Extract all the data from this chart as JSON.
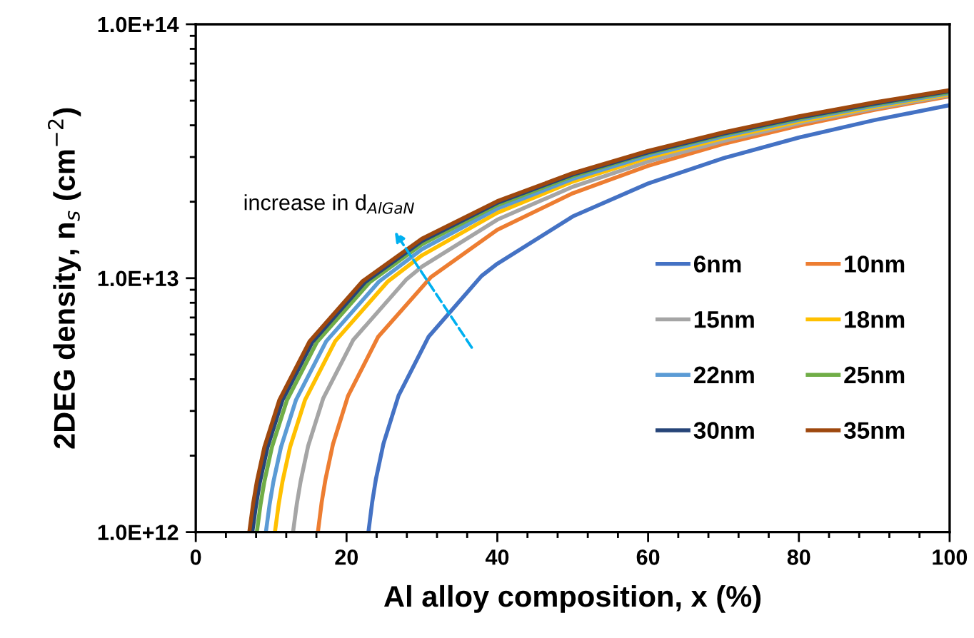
{
  "chart_data": {
    "type": "line",
    "xlabel": "Al alloy composition, x (%)",
    "ylabel": "2DEG density, n$_{s}$ (cm$^{−2}$)",
    "log": "y",
    "xlim": [
      0,
      100
    ],
    "xticks": [
      0,
      20,
      40,
      60,
      80,
      100
    ],
    "ylim": [
      1000000000000.0,
      100000000000000.0
    ],
    "yticks": [
      {
        "value": 1000000000000.0,
        "label": "1.0E+12"
      },
      {
        "value": 10000000000000.0,
        "label": "1.0E+13"
      },
      {
        "value": 100000000000000.0,
        "label": "1.0E+14"
      }
    ],
    "grid": false,
    "legend": "right",
    "marker": "none",
    "line_style": "solid",
    "annotations": [
      "increase in d$_{AlGaN}$"
    ],
    "series": [
      {
        "name": "6nm",
        "color": "#4472c4",
        "x": [
          22.9,
          23.4,
          23.9,
          24.9,
          26.9,
          30.9,
          37.9,
          40,
          50,
          60,
          70,
          80,
          90,
          100
        ],
        "values": [
          1000000000000.0,
          1310000000000.0,
          1620000000000.0,
          2230000000000.0,
          3450000000000.0,
          5890000000000.0,
          10200000000000.0,
          11400000000000.0,
          17500000000000.0,
          23600000000000.0,
          29700000000000.0,
          35800000000000.0,
          41900000000000.0,
          48000000000000.0
        ]
      },
      {
        "name": "10nm",
        "color": "#ed7d31",
        "x": [
          16.2,
          16.7,
          17.2,
          18.2,
          20.2,
          24.2,
          31.2,
          40,
          50,
          60,
          70,
          80,
          90,
          100
        ],
        "values": [
          1000000000000.0,
          1310000000000.0,
          1610000000000.0,
          2220000000000.0,
          3440000000000.0,
          5880000000000.0,
          10100000000000.0,
          15500000000000.0,
          21600000000000.0,
          27700000000000.0,
          33800000000000.0,
          39900000000000.0,
          46000000000000.0,
          52000000000000.0
        ]
      },
      {
        "name": "15nm",
        "color": "#a5a5a5",
        "x": [
          12.9,
          13.4,
          13.9,
          14.9,
          16.9,
          20.9,
          27.9,
          30,
          40,
          50,
          60,
          70,
          80,
          90,
          100
        ],
        "values": [
          1000000000000.0,
          1290000000000.0,
          1580000000000.0,
          2180000000000.0,
          3360000000000.0,
          5720000000000.0,
          9860000000000.0,
          11100000000000.0,
          17000000000000.0,
          22900000000000.0,
          28800000000000.0,
          34700000000000.0,
          40700000000000.0,
          46600000000000.0,
          52500000000000.0
        ]
      },
      {
        "name": "18nm",
        "color": "#ffc000",
        "x": [
          10.5,
          11,
          11.5,
          12.5,
          14.5,
          18.5,
          25.5,
          30,
          40,
          50,
          60,
          70,
          80,
          90,
          100
        ],
        "values": [
          1000000000000.0,
          1290000000000.0,
          1580000000000.0,
          2160000000000.0,
          3320000000000.0,
          5650000000000.0,
          9720000000000.0,
          12300000000000.0,
          18100000000000.0,
          24000000000000.0,
          29800000000000.0,
          35600000000000.0,
          41400000000000.0,
          47200000000000.0,
          53000000000000.0
        ]
      },
      {
        "name": "22nm",
        "color": "#5b9bd5",
        "x": [
          9.3,
          9.8,
          10.3,
          11.3,
          13.3,
          17.3,
          24.3,
          30,
          40,
          50,
          60,
          70,
          80,
          90,
          100
        ],
        "values": [
          1000000000000.0,
          1290000000000.0,
          1580000000000.0,
          2160000000000.0,
          3320000000000.0,
          5640000000000.0,
          9690000000000.0,
          13000000000000.0,
          18800000000000.0,
          24600000000000.0,
          30400000000000.0,
          36200000000000.0,
          42000000000000.0,
          47700000000000.0,
          53500000000000.0
        ]
      },
      {
        "name": "25nm",
        "color": "#70ad47",
        "x": [
          8.1,
          8.6,
          9.1,
          10.1,
          12.1,
          16.1,
          23.1,
          30,
          40,
          50,
          60,
          70,
          80,
          90,
          100
        ],
        "values": [
          1000000000000.0,
          1290000000000.0,
          1580000000000.0,
          2160000000000.0,
          3310000000000.0,
          5620000000000.0,
          9660000000000.0,
          13600000000000.0,
          19400000000000.0,
          25200000000000.0,
          31000000000000.0,
          36700000000000.0,
          42500000000000.0,
          48300000000000.0,
          54000000000000.0
        ]
      },
      {
        "name": "30nm",
        "color": "#264478",
        "x": [
          7.5,
          8,
          8.5,
          9.5,
          11.5,
          15.5,
          22.5,
          30,
          40,
          50,
          60,
          70,
          80,
          90,
          100
        ],
        "values": [
          1000000000000.0,
          1280000000000.0,
          1570000000000.0,
          2150000000000.0,
          3310000000000.0,
          5620000000000.0,
          9670000000000.0,
          14000000000000.0,
          19800000000000.0,
          25600000000000.0,
          31300000000000.0,
          37100000000000.0,
          42900000000000.0,
          48700000000000.0,
          54500000000000.0
        ]
      },
      {
        "name": "35nm",
        "color": "#9e480e",
        "x": [
          7.1,
          7.6,
          8.1,
          9.1,
          11.1,
          15.1,
          22.1,
          30,
          40,
          50,
          60,
          70,
          80,
          90,
          100
        ],
        "values": [
          1000000000000.0,
          1290000000000.0,
          1580000000000.0,
          2160000000000.0,
          3320000000000.0,
          5640000000000.0,
          9710000000000.0,
          14300000000000.0,
          20100000000000.0,
          25900000000000.0,
          31700000000000.0,
          37500000000000.0,
          43400000000000.0,
          49200000000000.0,
          55000000000000.0
        ]
      }
    ]
  }
}
